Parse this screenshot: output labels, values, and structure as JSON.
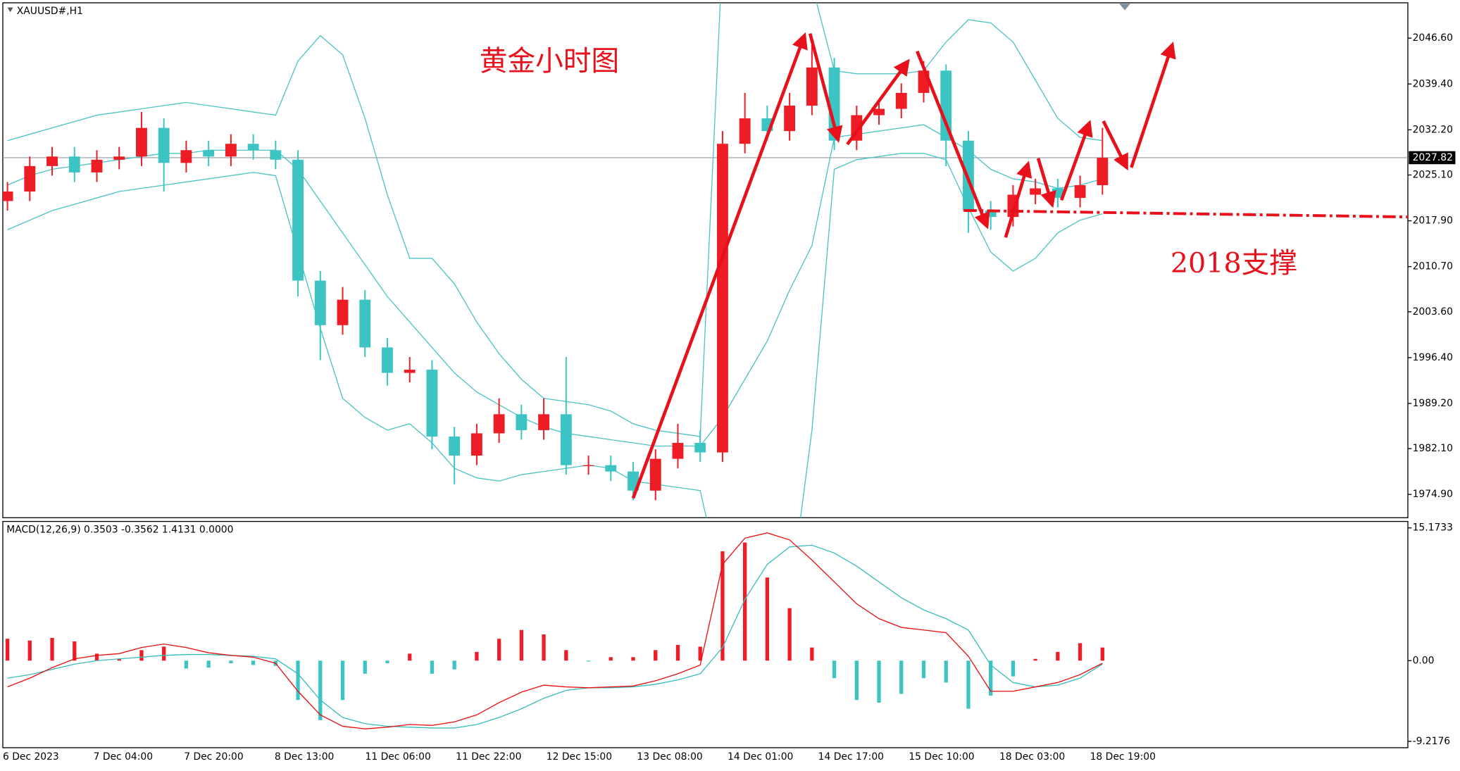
{
  "chart_data": [
    {
      "type": "candlestick",
      "title": "XAUUSD#,H1",
      "annotation": "黄金小时图",
      "support_note": "2018支撑",
      "up_color": "#ee1c25",
      "down_color": "#3cc4c4",
      "band_color": "#4cc3c3",
      "x_labels": [
        "6 Dec 2023",
        "7 Dec 04:00",
        "7 Dec 20:00",
        "8 Dec 13:00",
        "11 Dec 06:00",
        "11 Dec 22:00",
        "12 Dec 15:00",
        "13 Dec 08:00",
        "14 Dec 01:00",
        "14 Dec 17:00",
        "15 Dec 10:00",
        "18 Dec 03:00",
        "18 Dec 19:00"
      ],
      "open": [
        2021.0,
        2022.5,
        2026.5,
        2028.0,
        2025.5,
        2027.5,
        2028.0,
        2032.5,
        2027.0,
        2029.0,
        2028.0,
        2030.0,
        2029.0,
        2027.5,
        2008.5,
        2001.5,
        2005.5,
        1998.0,
        1994.0,
        1994.5,
        1984.0,
        1981.0,
        1984.5,
        1987.5,
        1985.0,
        1987.5,
        1979.5,
        1979.5,
        1978.5,
        1975.5,
        1980.5,
        1983.0,
        1981.5,
        2030.0,
        2034.0,
        2032.0,
        2036.0,
        2042.0,
        2030.5,
        2034.5,
        2035.5,
        2038.0,
        2041.5,
        2030.5,
        2019.5,
        2018.5,
        2022.0,
        2023.0,
        2021.5,
        2023.5
      ],
      "high": [
        2024.0,
        2028.0,
        2029.5,
        2029.5,
        2029.0,
        2029.5,
        2035.0,
        2034.0,
        2030.5,
        2030.5,
        2031.5,
        2031.5,
        2030.5,
        2029.0,
        2010.0,
        2007.5,
        2007.0,
        1999.5,
        1996.5,
        1996.0,
        1985.5,
        1986.0,
        1990.0,
        1989.0,
        1990.0,
        1996.5,
        1981.0,
        1981.0,
        1980.0,
        1982.0,
        1986.0,
        1985.0,
        2032.0,
        2038.0,
        2036.0,
        2038.0,
        2046.5,
        2043.5,
        2036.0,
        2037.0,
        2039.5,
        2043.0,
        2042.5,
        2032.0,
        2021.0,
        2023.5,
        2024.5,
        2024.5,
        2025.0,
        2032.5
      ],
      "low": [
        2019.5,
        2021.0,
        2025.0,
        2024.0,
        2024.0,
        2026.0,
        2026.5,
        2022.5,
        2025.5,
        2026.5,
        2026.5,
        2027.5,
        2026.0,
        2006.0,
        1996.0,
        2000.0,
        1996.5,
        1992.0,
        1992.5,
        1982.0,
        1976.5,
        1979.5,
        1983.0,
        1983.5,
        1983.5,
        1978.0,
        1978.0,
        1977.0,
        1974.0,
        1974.0,
        1979.0,
        1980.0,
        1980.0,
        2028.5,
        2030.5,
        2030.5,
        2034.5,
        2029.0,
        2029.0,
        2033.0,
        2034.0,
        2036.5,
        2026.5,
        2016.0,
        2016.5,
        2017.0,
        2020.5,
        2020.0,
        2020.0,
        2022.0
      ],
      "close": [
        2022.5,
        2026.5,
        2028.0,
        2025.5,
        2027.5,
        2028.0,
        2032.5,
        2027.0,
        2029.0,
        2028.0,
        2030.0,
        2029.0,
        2027.5,
        2008.5,
        2001.5,
        2005.5,
        1998.0,
        1994.0,
        1994.5,
        1984.0,
        1981.0,
        1984.5,
        1987.5,
        1985.0,
        1987.5,
        1979.5,
        1979.5,
        1978.5,
        1975.5,
        1980.5,
        1983.0,
        1981.5,
        2030.0,
        2034.0,
        2032.0,
        2036.0,
        2042.0,
        2030.5,
        2034.5,
        2035.5,
        2038.0,
        2041.5,
        2030.5,
        2019.5,
        2018.5,
        2022.0,
        2023.0,
        2021.5,
        2023.5,
        2027.8
      ],
      "upper": [
        2030.5,
        2031.5,
        2032.5,
        2033.5,
        2034.5,
        2035,
        2035.5,
        2036,
        2036.5,
        2036,
        2035.5,
        2035,
        2034.5,
        2043,
        2047,
        2044,
        2034,
        2022,
        2012,
        2012,
        2008,
        2002,
        1997,
        1993,
        1990,
        1989.5,
        1989,
        1988,
        1986,
        1985,
        1984.5,
        1984,
        2060,
        2062,
        2063,
        2062,
        2055,
        2041.5,
        2041,
        2041,
        2041,
        2041.5,
        2046,
        2049.5,
        2049,
        2046,
        2040,
        2034,
        2031,
        2030.5
      ],
      "middle": [
        2023.5,
        2025,
        2026,
        2026.5,
        2027,
        2027.5,
        2028,
        2028.5,
        2028.5,
        2029,
        2029,
        2029,
        2029,
        2026,
        2021,
        2016,
        2011,
        2006,
        2002,
        1998,
        1994,
        1991,
        1989,
        1987,
        1985.5,
        1984.5,
        1984,
        1983.5,
        1983,
        1982.5,
        1982.5,
        1982.5,
        1987,
        1993,
        1999,
        2007,
        2014,
        2031,
        2031.5,
        2032,
        2032.5,
        2033,
        2031,
        2029,
        2026,
        2024.5,
        2024,
        2023,
        2023.5,
        2024.5
      ],
      "lower": [
        2016.5,
        2018,
        2019.5,
        2020.5,
        2021.5,
        2022.5,
        2023,
        2023.5,
        2024,
        2024.5,
        2025,
        2025.5,
        2025,
        2013,
        2001,
        1990,
        1987,
        1985,
        1986,
        1983,
        1979,
        1977.5,
        1977,
        1978,
        1978.5,
        1979,
        1979.5,
        1979,
        1977,
        1976.5,
        1976,
        1975.5,
        1960,
        1955,
        1950,
        1958,
        1985,
        2026,
        2027.5,
        2028,
        2028.5,
        2028.5,
        2027.5,
        2020,
        2013,
        2010,
        2012,
        2016,
        2018,
        2019
      ],
      "last_price": 2027.82,
      "ylim": [
        1971.24,
        2052.16
      ],
      "yticks": [
        {
          "value": 2046.6,
          "label": "2046.60"
        },
        {
          "value": 2039.4,
          "label": "2039.40"
        },
        {
          "value": 2032.2,
          "label": "2032.20"
        },
        {
          "value": 2025.1,
          "label": "2025.10"
        },
        {
          "value": 2017.9,
          "label": "2017.90"
        },
        {
          "value": 2010.7,
          "label": "2010.70"
        },
        {
          "value": 2003.6,
          "label": "2003.60"
        },
        {
          "value": 1996.4,
          "label": "1996.40"
        },
        {
          "value": 1989.2,
          "label": "1989.20"
        },
        {
          "value": 1982.1,
          "label": "1982.10"
        },
        {
          "value": 1974.9,
          "label": "1974.90"
        }
      ]
    },
    {
      "type": "macd",
      "title": "MACD(12,26,9) 0.3503 -0.3562 1.4131 0.0000",
      "up_color": "#ee1c25",
      "down_color": "#3cc4c4",
      "macd_color": "#e81010",
      "signal_color": "#3cbcbc",
      "histogram": [
        2.5,
        2.3,
        2.6,
        2.2,
        0.8,
        0.2,
        1.2,
        1.6,
        -0.9,
        -0.8,
        -0.3,
        -0.5,
        -0.6,
        -4.5,
        -6.8,
        -4.5,
        -1.5,
        -0.3,
        0.8,
        -1.5,
        -1.0,
        1.0,
        2.5,
        3.5,
        3.0,
        1.2,
        -0.1,
        0.4,
        0.4,
        1.2,
        1.8,
        1.6,
        12.5,
        13.5,
        9.5,
        6.0,
        1.5,
        -2.0,
        -4.5,
        -4.8,
        -3.8,
        -2.0,
        -2.5,
        -5.5,
        -4.0,
        -1.8,
        0.2,
        1.0,
        2.0,
        1.5
      ],
      "macd": [
        -3.0,
        -2.0,
        -0.8,
        0.2,
        0.6,
        0.8,
        1.5,
        1.9,
        1.5,
        0.9,
        0.6,
        0.4,
        -0.3,
        -3.5,
        -6.2,
        -7.5,
        -7.8,
        -7.6,
        -7.3,
        -7.4,
        -7.0,
        -6.2,
        -4.8,
        -3.6,
        -2.8,
        -3.0,
        -3.1,
        -3.0,
        -2.9,
        -2.3,
        -1.5,
        -0.5,
        11.0,
        14.0,
        14.6,
        13.8,
        11.5,
        9.0,
        6.5,
        4.8,
        3.8,
        3.5,
        3.2,
        0.5,
        -3.5,
        -3.5,
        -3.0,
        -2.5,
        -1.6,
        -0.3
      ],
      "signal": [
        -2.0,
        -1.6,
        -1.0,
        -0.4,
        0.0,
        0.2,
        0.4,
        0.6,
        0.7,
        0.7,
        0.6,
        0.5,
        0.2,
        -1.5,
        -4.5,
        -6.5,
        -7.2,
        -7.5,
        -7.6,
        -7.7,
        -7.7,
        -7.3,
        -6.5,
        -5.5,
        -4.3,
        -3.4,
        -3.1,
        -3.1,
        -3.0,
        -2.7,
        -2.2,
        -1.5,
        1.5,
        7.0,
        11.0,
        13.0,
        13.2,
        12.3,
        10.8,
        9.0,
        7.2,
        5.8,
        4.8,
        3.5,
        -0.5,
        -2.5,
        -3.0,
        -2.8,
        -2.0,
        -0.4
      ],
      "ylim": [
        -9.95,
        15.91
      ],
      "yticks": [
        15.1733,
        {
          "value": 0,
          "label": "0.00"
        },
        -9.2176
      ]
    }
  ]
}
